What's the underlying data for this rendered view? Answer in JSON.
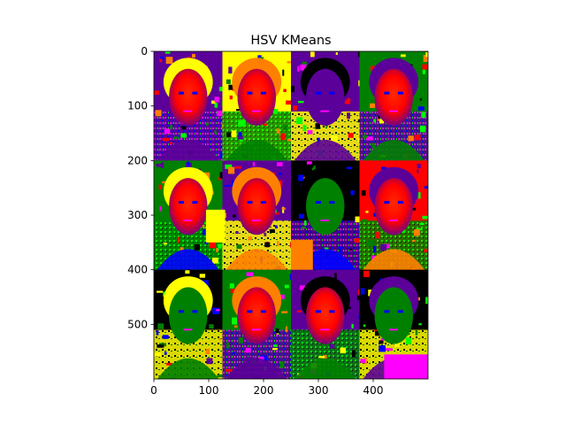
{
  "figure": {
    "title": "HSV KMeans"
  },
  "image": {
    "width": 500,
    "height": 600,
    "grid_rows": 3,
    "grid_cols": 4,
    "description_palette": [
      "#ff0000",
      "#ff8000",
      "#ffff00",
      "#00ff00",
      "#008000",
      "#0000ff",
      "#5b0099",
      "#ff00ff",
      "#000000"
    ]
  },
  "axes": {
    "x_ticks": [
      0,
      100,
      200,
      300,
      400
    ],
    "y_ticks": [
      0,
      100,
      200,
      300,
      400,
      500
    ],
    "x_range": [
      0,
      500
    ],
    "y_range": [
      600,
      0
    ]
  }
}
